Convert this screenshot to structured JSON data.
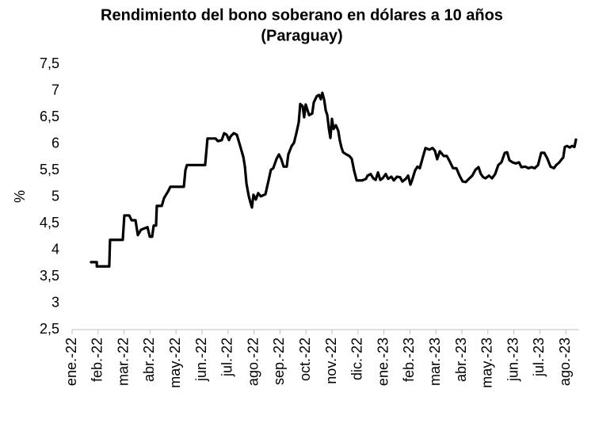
{
  "chart_data": {
    "type": "line",
    "title": [
      "Rendimiento del bono soberano en dólares a 10 años",
      "(Paraguay)"
    ],
    "ylabel": "%",
    "ylim": [
      2.5,
      7.5
    ],
    "yticks": [
      {
        "value": 2.5,
        "label": "2,5"
      },
      3,
      {
        "value": 3.5,
        "label": "3,5"
      },
      4,
      {
        "value": 4.5,
        "label": "4,5"
      },
      5,
      {
        "value": 5.5,
        "label": "5,5"
      },
      6,
      {
        "value": 6.5,
        "label": "6,5"
      },
      7,
      {
        "value": 7.5,
        "label": "7,5"
      }
    ],
    "xlim": [
      0,
      19.5
    ],
    "xticks": [
      {
        "value": 0,
        "label": "ene.-22"
      },
      {
        "value": 1,
        "label": "feb.-22"
      },
      {
        "value": 2,
        "label": "mar.-22"
      },
      {
        "value": 3,
        "label": "abr.-22"
      },
      {
        "value": 4,
        "label": "may.-22"
      },
      {
        "value": 5,
        "label": "jun.-22"
      },
      {
        "value": 6,
        "label": "jul.-22"
      },
      {
        "value": 7,
        "label": "ago.-22"
      },
      {
        "value": 8,
        "label": "sep.-22"
      },
      {
        "value": 9,
        "label": "oct.-22"
      },
      {
        "value": 10,
        "label": "nov.-22"
      },
      {
        "value": 11,
        "label": "dic.-22"
      },
      {
        "value": 12,
        "label": "ene.-23"
      },
      {
        "value": 13,
        "label": "feb.-23"
      },
      {
        "value": 14,
        "label": "mar.-23"
      },
      {
        "value": 15,
        "label": "abr.-23"
      },
      {
        "value": 16,
        "label": "may.-23"
      },
      {
        "value": 17,
        "label": "jun.-23"
      },
      {
        "value": 18,
        "label": "jul.-23"
      },
      {
        "value": 19,
        "label": "ago.-23"
      }
    ],
    "grid": false,
    "x": [
      0.73,
      0.95,
      0.95,
      1.43,
      1.46,
      1.95,
      2.01,
      2.2,
      2.29,
      2.44,
      2.53,
      2.65,
      2.9,
      2.99,
      3.08,
      3.14,
      3.23,
      3.26,
      3.45,
      3.54,
      3.69,
      3.78,
      4.3,
      4.36,
      4.42,
      5.12,
      5.21,
      5.52,
      5.61,
      5.76,
      5.85,
      5.95,
      6.04,
      6.1,
      6.22,
      6.34,
      6.4,
      6.49,
      6.59,
      6.65,
      6.71,
      6.8,
      6.86,
      6.92,
      6.98,
      7.07,
      7.16,
      7.26,
      7.44,
      7.56,
      7.65,
      7.74,
      7.87,
      7.96,
      8.05,
      8.14,
      8.26,
      8.32,
      8.45,
      8.54,
      8.63,
      8.72,
      8.78,
      8.87,
      8.93,
      8.99,
      9.12,
      9.24,
      9.3,
      9.42,
      9.51,
      9.57,
      9.63,
      9.7,
      9.76,
      9.82,
      9.88,
      9.94,
      10,
      10.06,
      10.15,
      10.24,
      10.3,
      10.37,
      10.43,
      10.52,
      10.67,
      10.76,
      10.85,
      10.95,
      11.16,
      11.31,
      11.37,
      11.49,
      11.59,
      11.68,
      11.77,
      11.86,
      11.95,
      12.07,
      12.16,
      12.29,
      12.38,
      12.5,
      12.62,
      12.71,
      12.84,
      12.93,
      13.02,
      13.08,
      13.2,
      13.29,
      13.38,
      13.51,
      13.6,
      13.75,
      13.87,
      13.96,
      14.05,
      14.15,
      14.3,
      14.42,
      14.54,
      14.66,
      14.79,
      14.91,
      15.03,
      15.15,
      15.27,
      15.4,
      15.52,
      15.64,
      15.73,
      15.82,
      15.91,
      16.04,
      16.16,
      16.28,
      16.4,
      16.52,
      16.65,
      16.74,
      16.83,
      16.95,
      17.07,
      17.2,
      17.29,
      17.44,
      17.56,
      17.68,
      17.8,
      17.93,
      18.05,
      18.17,
      18.29,
      18.41,
      18.54,
      18.63,
      18.75,
      18.84,
      18.9,
      18.96,
      19.05,
      19.15,
      19.24,
      19.33,
      19.39
    ],
    "series": [
      {
        "color": "#000000",
        "values": [
          3.77,
          3.77,
          3.69,
          3.69,
          4.19,
          4.19,
          4.65,
          4.65,
          4.56,
          4.56,
          4.28,
          4.38,
          4.43,
          4.25,
          4.25,
          4.46,
          4.46,
          4.83,
          4.83,
          4.98,
          5.1,
          5.19,
          5.19,
          5.5,
          5.6,
          5.6,
          6.1,
          6.1,
          6.05,
          6.07,
          6.2,
          6.17,
          6.07,
          6.14,
          6.2,
          6.17,
          6.07,
          5.92,
          5.75,
          5.57,
          5.25,
          5.01,
          4.9,
          4.8,
          5.04,
          4.95,
          5.07,
          5.01,
          5.05,
          5.31,
          5.51,
          5.54,
          5.72,
          5.8,
          5.71,
          5.57,
          5.57,
          5.8,
          5.96,
          6.02,
          6.2,
          6.4,
          6.75,
          6.71,
          6.5,
          6.74,
          6.54,
          6.57,
          6.78,
          6.9,
          6.92,
          6.84,
          6.96,
          6.83,
          6.63,
          6.54,
          6.29,
          6.11,
          6.47,
          6.28,
          6.35,
          6.25,
          6.07,
          5.92,
          5.84,
          5.81,
          5.77,
          5.72,
          5.5,
          5.31,
          5.31,
          5.34,
          5.4,
          5.43,
          5.35,
          5.32,
          5.46,
          5.32,
          5.35,
          5.43,
          5.34,
          5.38,
          5.31,
          5.38,
          5.37,
          5.29,
          5.34,
          5.4,
          5.23,
          5.31,
          5.5,
          5.57,
          5.54,
          5.77,
          5.92,
          5.89,
          5.92,
          5.87,
          5.71,
          5.86,
          5.77,
          5.77,
          5.66,
          5.54,
          5.54,
          5.4,
          5.29,
          5.28,
          5.34,
          5.4,
          5.51,
          5.56,
          5.43,
          5.37,
          5.35,
          5.4,
          5.35,
          5.43,
          5.6,
          5.65,
          5.83,
          5.84,
          5.69,
          5.65,
          5.63,
          5.65,
          5.56,
          5.57,
          5.54,
          5.56,
          5.54,
          5.6,
          5.83,
          5.83,
          5.72,
          5.57,
          5.54,
          5.6,
          5.65,
          5.71,
          5.74,
          5.94,
          5.96,
          5.93,
          5.96,
          5.94,
          6.08
        ]
      }
    ]
  }
}
